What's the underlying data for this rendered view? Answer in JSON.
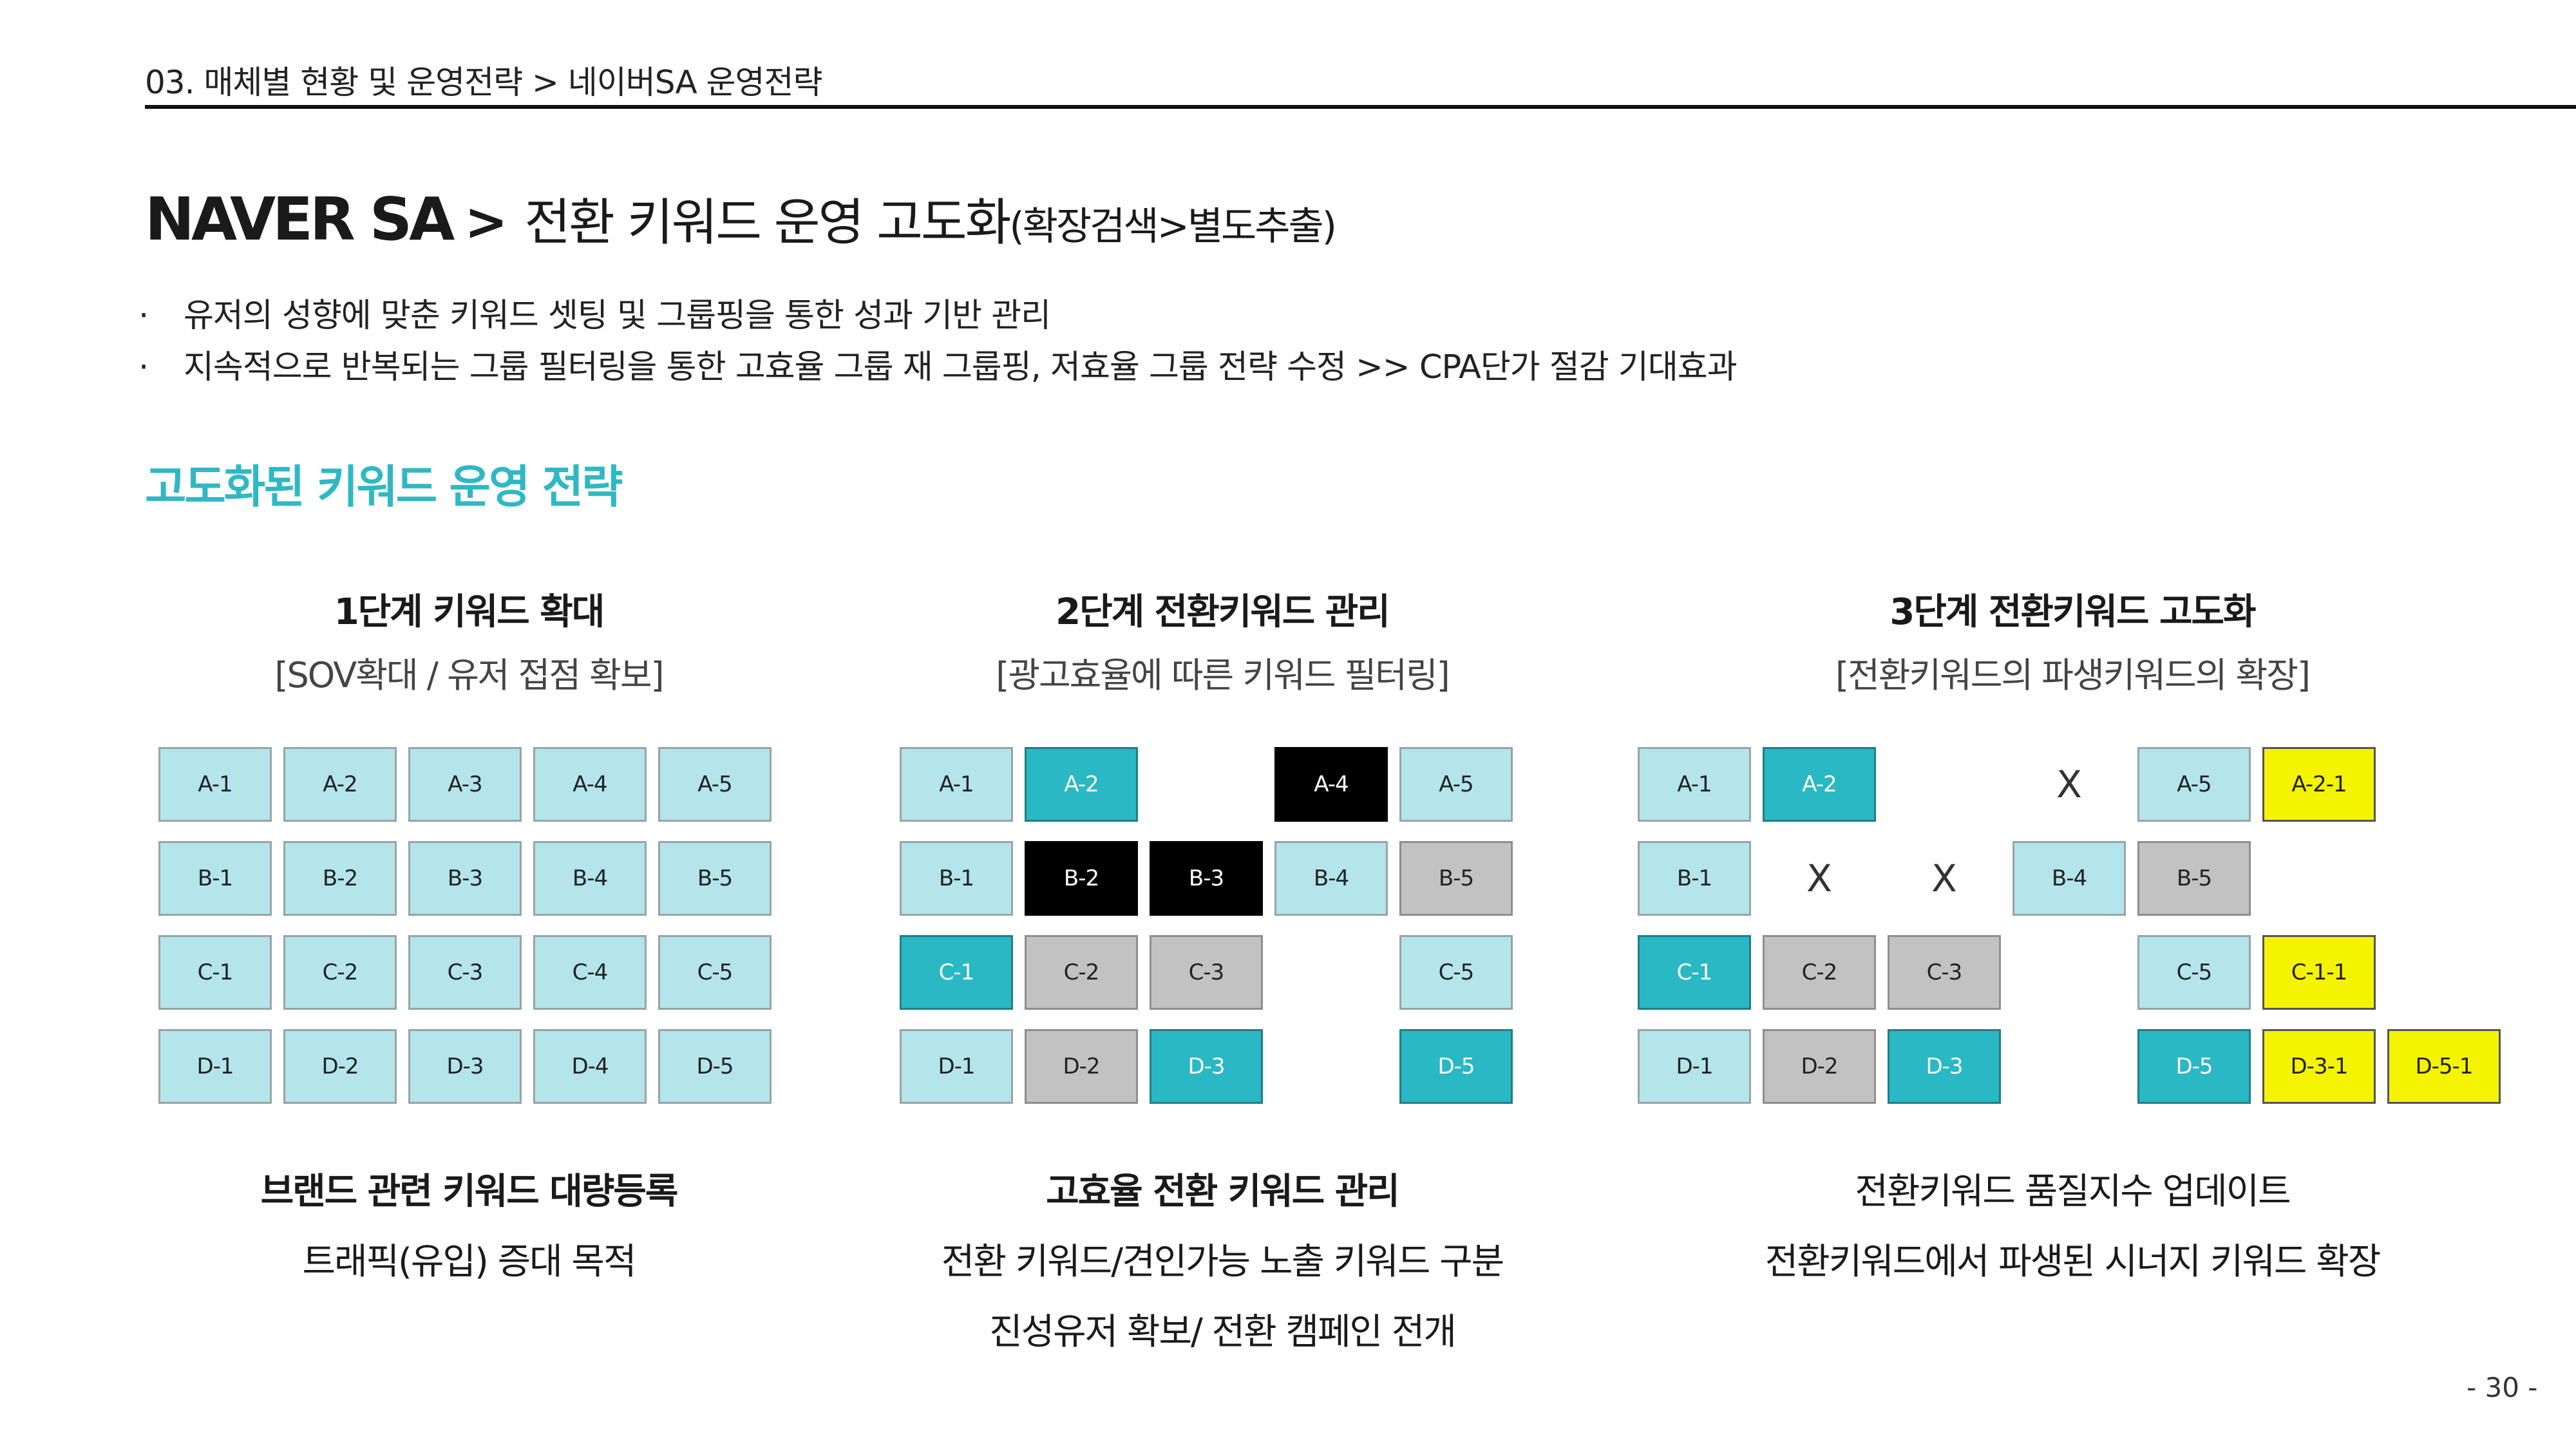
{
  "breadcrumb": "03. 매체별 현황 및 운영전략  >  네이버SA  운영전략",
  "title": {
    "main": "NAVER SA",
    "separator": ">",
    "sub": "전환 키워드 운영 고도화",
    "paren": "(확장검색>별도추출)"
  },
  "bullets": [
    {
      "marker": "·",
      "text": "유저의 성향에 맞춘 키워드 셋팅 및 그룹핑을 통한 성과 기반 관리"
    },
    {
      "marker": "·",
      "text": "지속적으로 반복되는 그룹 필터링을 통한 고효율 그룹 재 그룹핑, 저효율 그룹 전략 수정  >>  CPA단가 절감 기대효과"
    }
  ],
  "section_title": "고도화된 키워드 운영 전략",
  "colors": {
    "accent": "#2fb8c4",
    "light_cell": "#b3e5ea",
    "teal_cell": "#29b8c4",
    "black_cell": "#000000",
    "gray_cell": "#c2c2c2",
    "yellow_cell": "#f4f400"
  },
  "stages": [
    {
      "heading": "1단계 키워드 확대",
      "subheading": "[SOV확대 / 유저 접점 확보]",
      "rows": [
        [
          {
            "label": "A-1",
            "state": "light"
          },
          {
            "label": "A-2",
            "state": "light"
          },
          {
            "label": "A-3",
            "state": "light"
          },
          {
            "label": "A-4",
            "state": "light"
          },
          {
            "label": "A-5",
            "state": "light"
          }
        ],
        [
          {
            "label": "B-1",
            "state": "light"
          },
          {
            "label": "B-2",
            "state": "light"
          },
          {
            "label": "B-3",
            "state": "light"
          },
          {
            "label": "B-4",
            "state": "light"
          },
          {
            "label": "B-5",
            "state": "light"
          }
        ],
        [
          {
            "label": "C-1",
            "state": "light"
          },
          {
            "label": "C-2",
            "state": "light"
          },
          {
            "label": "C-3",
            "state": "light"
          },
          {
            "label": "C-4",
            "state": "light"
          },
          {
            "label": "C-5",
            "state": "light"
          }
        ],
        [
          {
            "label": "D-1",
            "state": "light"
          },
          {
            "label": "D-2",
            "state": "light"
          },
          {
            "label": "D-3",
            "state": "light"
          },
          {
            "label": "D-4",
            "state": "light"
          },
          {
            "label": "D-5",
            "state": "light"
          }
        ]
      ],
      "footer": [
        "브랜드 관련 키워드 대량등록",
        "트래픽(유입) 증대 목적"
      ]
    },
    {
      "heading": "2단계 전환키워드 관리",
      "subheading": "[광고효율에 따른 키워드 필터링]",
      "rows": [
        [
          {
            "label": "A-1",
            "state": "light"
          },
          {
            "label": "A-2",
            "state": "teal"
          },
          null,
          {
            "label": "A-4",
            "state": "black"
          },
          {
            "label": "A-5",
            "state": "light"
          }
        ],
        [
          {
            "label": "B-1",
            "state": "light"
          },
          {
            "label": "B-2",
            "state": "black"
          },
          {
            "label": "B-3",
            "state": "black"
          },
          {
            "label": "B-4",
            "state": "light"
          },
          {
            "label": "B-5",
            "state": "gray"
          }
        ],
        [
          {
            "label": "C-1",
            "state": "teal"
          },
          {
            "label": "C-2",
            "state": "gray"
          },
          {
            "label": "C-3",
            "state": "gray"
          },
          null,
          {
            "label": "C-5",
            "state": "light"
          }
        ],
        [
          {
            "label": "D-1",
            "state": "light"
          },
          {
            "label": "D-2",
            "state": "gray"
          },
          {
            "label": "D-3",
            "state": "teal"
          },
          null,
          {
            "label": "D-5",
            "state": "teal"
          }
        ]
      ],
      "footer": [
        "고효율 전환 키워드 관리",
        "전환 키워드/견인가능 노출 키워드 구분",
        "진성유저 확보/ 전환 캠페인 전개"
      ]
    },
    {
      "heading": "3단계 전환키워드 고도화",
      "subheading": "[전환키워드의 파생키워드의 확장]",
      "rows": [
        [
          {
            "label": "A-1",
            "state": "light"
          },
          {
            "label": "A-2",
            "state": "teal"
          },
          null,
          {
            "label": "X",
            "state": "x"
          },
          {
            "label": "A-5",
            "state": "light"
          },
          {
            "label": "A-2-1",
            "state": "yellow"
          },
          null
        ],
        [
          {
            "label": "B-1",
            "state": "light"
          },
          {
            "label": "X",
            "state": "x"
          },
          {
            "label": "X",
            "state": "x"
          },
          {
            "label": "B-4",
            "state": "light"
          },
          {
            "label": "B-5",
            "state": "gray"
          },
          null,
          null
        ],
        [
          {
            "label": "C-1",
            "state": "teal"
          },
          {
            "label": "C-2",
            "state": "gray"
          },
          {
            "label": "C-3",
            "state": "gray"
          },
          null,
          {
            "label": "C-5",
            "state": "light"
          },
          {
            "label": "C-1-1",
            "state": "yellow"
          },
          null
        ],
        [
          {
            "label": "D-1",
            "state": "light"
          },
          {
            "label": "D-2",
            "state": "gray"
          },
          {
            "label": "D-3",
            "state": "teal"
          },
          null,
          {
            "label": "D-5",
            "state": "teal"
          },
          {
            "label": "D-3-1",
            "state": "yellow"
          },
          {
            "label": "D-5-1",
            "state": "yellow"
          }
        ]
      ],
      "footer": [
        "전환키워드 품질지수 업데이트",
        "전환키워드에서 파생된 시너지 키워드 확장"
      ]
    }
  ],
  "page_number": "- 30 -"
}
